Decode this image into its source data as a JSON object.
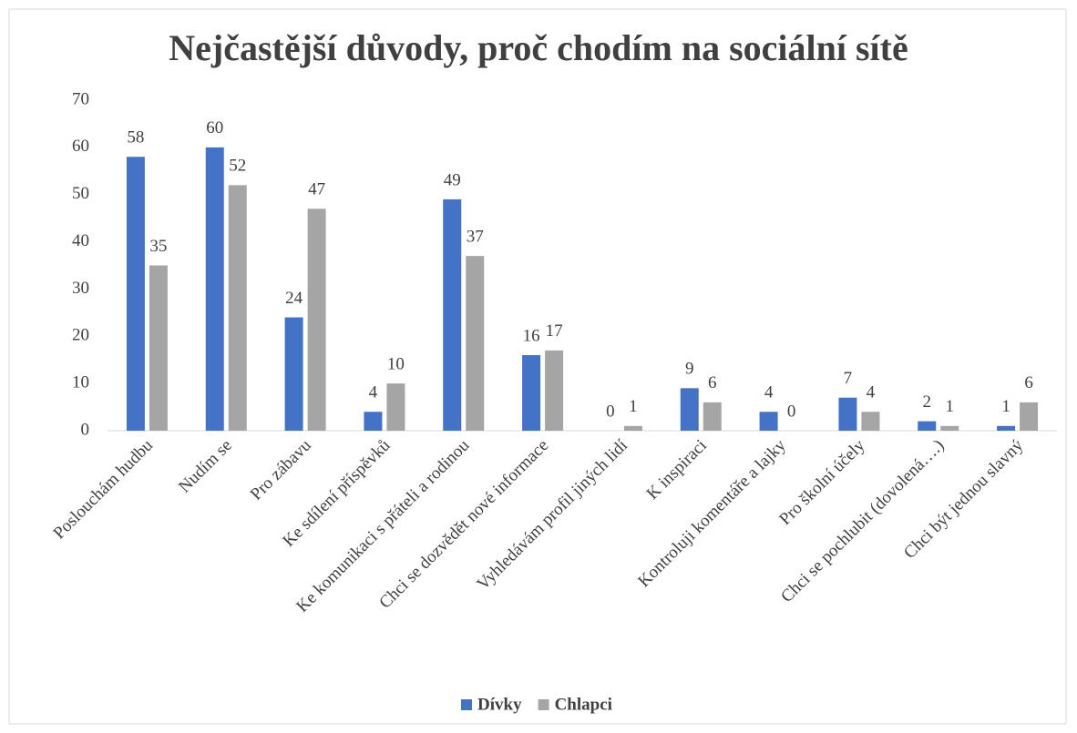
{
  "chart_data": {
    "type": "bar",
    "title": "Nejčastější důvody, proč chodím na sociální sítě",
    "categories": [
      "Poslouchám hudbu",
      "Nudím se",
      "Pro zábavu",
      "Ke sdílení příspěvků",
      "Ke komunikaci s přáteli a rodinou",
      "Chci se dozvědět nové informace",
      "Vyhledávám profil jiných lidí",
      "K inspiraci",
      "Kontroluji komentáře a lajky",
      "Pro školní účely",
      "Chci se pochlubit (dovolená….)",
      "Chci být jednou slavný"
    ],
    "series": [
      {
        "name": "Dívky",
        "color": "#4472c4",
        "values": [
          58,
          60,
          24,
          4,
          49,
          16,
          0,
          9,
          4,
          7,
          2,
          1
        ]
      },
      {
        "name": "Chlapci",
        "color": "#a5a5a5",
        "values": [
          35,
          52,
          47,
          10,
          37,
          17,
          1,
          6,
          0,
          4,
          1,
          6
        ]
      }
    ],
    "ylim": [
      0,
      70
    ],
    "yticks": [
      0,
      10,
      20,
      30,
      40,
      50,
      60,
      70
    ],
    "grid": false,
    "legend": "bottom"
  }
}
